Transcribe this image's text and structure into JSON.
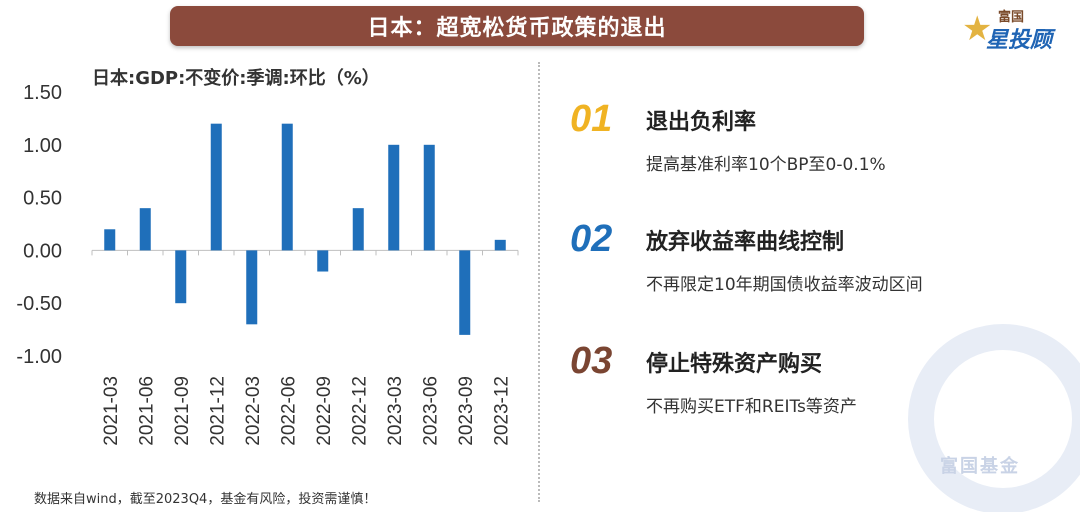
{
  "header": {
    "title": "日本：超宽松货币政策的退出"
  },
  "logo": {
    "top": "富国",
    "main": "星投顾"
  },
  "chart_data": {
    "type": "bar",
    "title": "日本:GDP:不变价:季调:环比（%）",
    "categories": [
      "2021-03",
      "2021-06",
      "2021-09",
      "2021-12",
      "2022-03",
      "2022-06",
      "2022-09",
      "2022-12",
      "2023-03",
      "2023-06",
      "2023-09",
      "2023-12"
    ],
    "series": [
      {
        "values": [
          0.2,
          0.4,
          -0.5,
          1.2,
          -0.7,
          1.2,
          -0.2,
          0.4,
          1.0,
          1.0,
          -0.8,
          0.1
        ]
      }
    ],
    "ylim": [
      -1.0,
      1.5
    ],
    "yticks": [
      "1.50",
      "1.00",
      "0.50",
      "0.00",
      "-0.50",
      "-1.00"
    ],
    "ytick_values": [
      1.5,
      1.0,
      0.5,
      0.0,
      -0.5,
      -1.0
    ],
    "bar_color": "#1f6fba",
    "grid": false
  },
  "source": "数据来自wind，截至2023Q4，基金有风险，投资需谨慎！",
  "points": [
    {
      "num": "01",
      "title": "退出负利率",
      "desc": "提高基准利率10个BP至0-0.1%",
      "color": "#f0b323"
    },
    {
      "num": "02",
      "title": "放弃收益率曲线控制",
      "desc": "不再限定10年期国债收益率波动区间",
      "color": "#1f6fba"
    },
    {
      "num": "03",
      "title": "停止特殊资产购买",
      "desc": "不再购买ETF和REITs等资产",
      "color": "#7a4532"
    }
  ],
  "watermark": {
    "text": "富国基金"
  }
}
